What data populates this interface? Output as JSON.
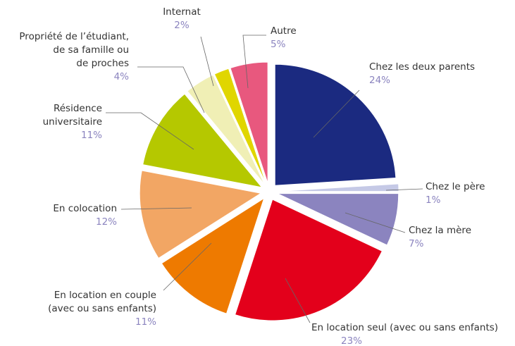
{
  "chart_data": {
    "type": "pie",
    "categories": [
      "Chez les deux parents",
      "Chez le père",
      "Chez la mère",
      "En location seul (avec ou sans enfants)",
      "En location en couple\n(avec ou sans enfants)",
      "En colocation",
      "Résidence\nuniversitaire",
      "Propriété de l’étudiant,\nde sa famille ou\nde proches",
      "Internat",
      "Autre"
    ],
    "values": [
      24,
      1,
      7,
      23,
      11,
      12,
      11,
      4,
      2,
      5
    ],
    "value_labels": [
      "24%",
      "1%",
      "7%",
      "23%",
      "11%",
      "12%",
      "11%",
      "4%",
      "2%",
      "5%"
    ],
    "colors": [
      "#1b2a80",
      "#c5c9e6",
      "#8b84bf",
      "#e3001b",
      "#ee7a00",
      "#f2a664",
      "#b5c800",
      "#f0efb5",
      "#e0d600",
      "#e8587e"
    ]
  }
}
